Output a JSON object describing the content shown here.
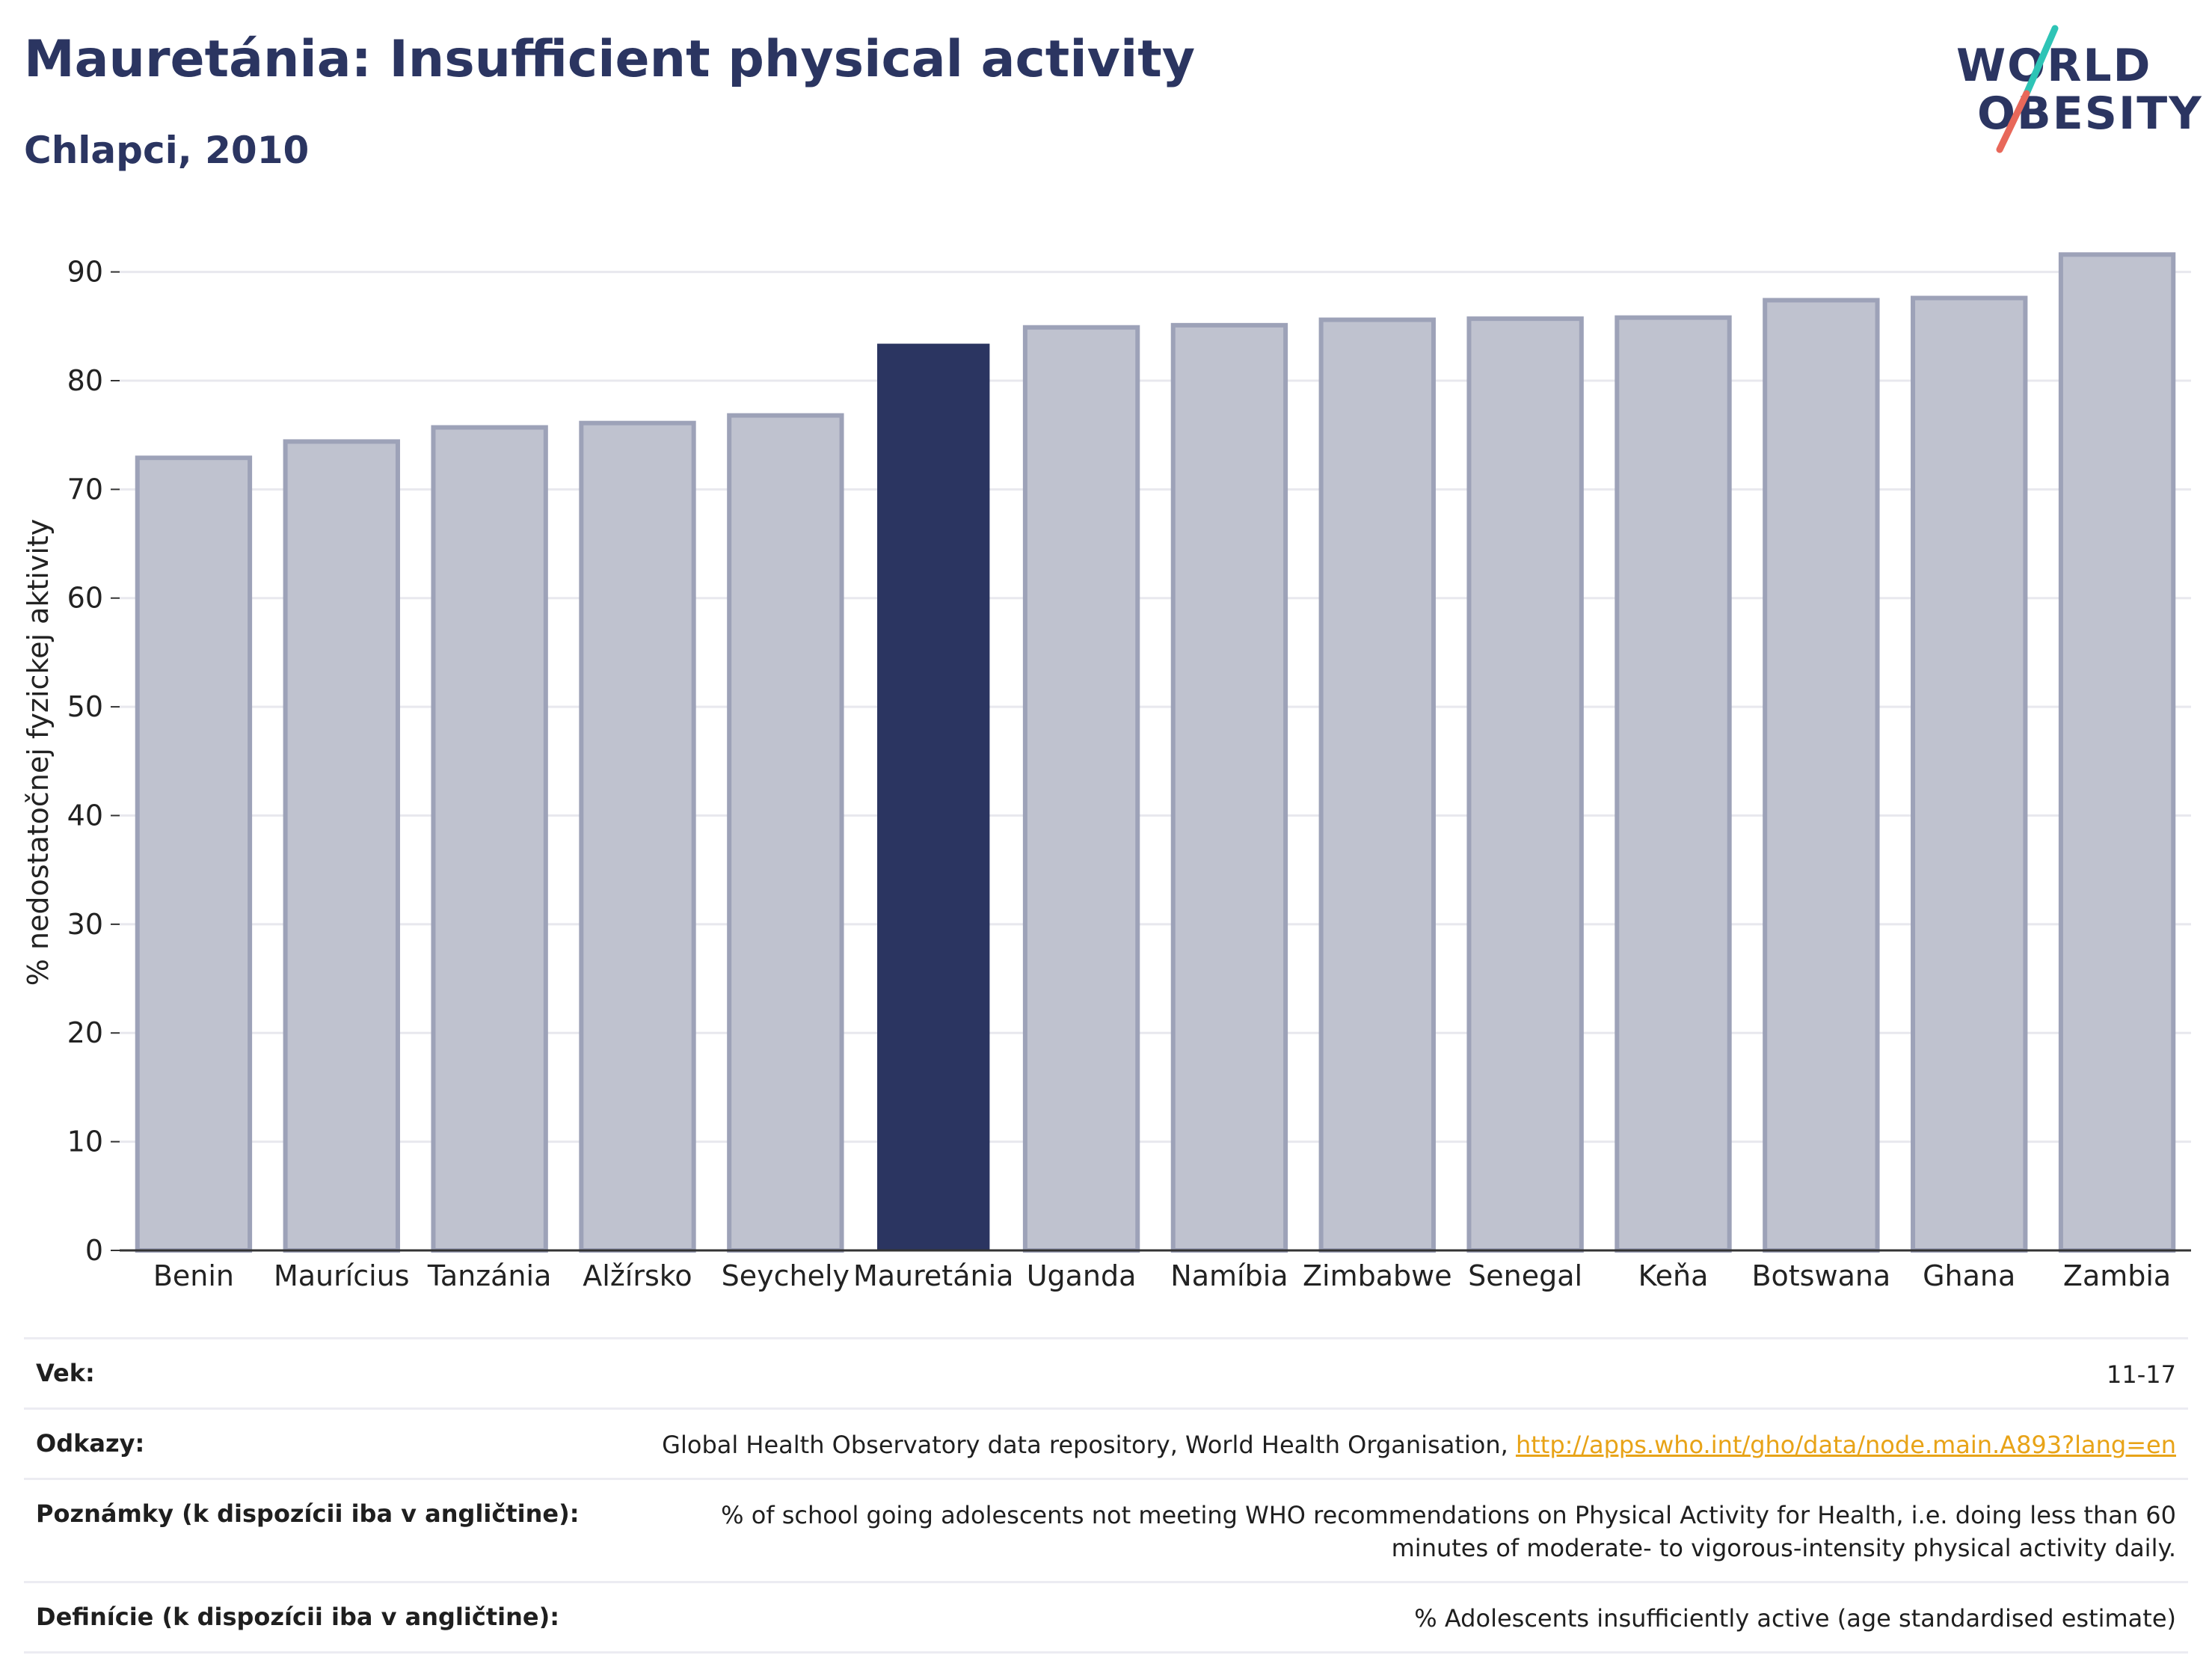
{
  "header": {
    "title": "Mauretánia: Insufficient physical activity",
    "subtitle": "Chlapci, 2010"
  },
  "logo": {
    "line1": "WORLD",
    "line2": "OBESITY",
    "colors": {
      "text": "#2b3561",
      "slash_teal": "#2ec4b6",
      "slash_coral": "#e8685a"
    }
  },
  "chart_data": {
    "type": "bar",
    "title": "Mauretánia: Insufficient physical activity",
    "subtitle": "Chlapci, 2010",
    "xlabel": "",
    "ylabel": "% nedostatočnej fyzickej aktivity",
    "ylim": [
      0,
      93
    ],
    "yticks": [
      0,
      10,
      20,
      30,
      40,
      50,
      60,
      70,
      80,
      90
    ],
    "grid": true,
    "categories": [
      "Benin",
      "Maurícius",
      "Tanzánia",
      "Alžírsko",
      "Seychely",
      "Mauretánia",
      "Uganda",
      "Namíbia",
      "Zimbabwe",
      "Senegal",
      "Keňa",
      "Botswana",
      "Ghana",
      "Zambia"
    ],
    "values": [
      72.9,
      74.4,
      75.7,
      76.1,
      76.8,
      83.4,
      84.9,
      85.1,
      85.6,
      85.7,
      85.8,
      87.4,
      87.6,
      91.6
    ],
    "highlight": "Mauretánia",
    "colors": {
      "bar": "#bfc2cf",
      "bar_border": "#9da2b8",
      "highlight": "#2b3561",
      "grid": "#e8e8ee",
      "axis": "#333333"
    }
  },
  "info": [
    {
      "label": "Vek:",
      "value": "11-17"
    },
    {
      "label": "Odkazy:",
      "value": "Global Health Observatory data repository, World Health Organisation, ",
      "link": "http://apps.who.int/gho/data/node.main.A893?lang=en"
    },
    {
      "label": "Poznámky (k dispozícii iba v angličtine):",
      "value": "% of school going adolescents not meeting WHO recommendations on Physical Activity for Health, i.e. doing less than 60 minutes of moderate- to vigorous-intensity physical activity daily."
    },
    {
      "label": "Definície (k dispozícii iba v angličtine):",
      "value": "% Adolescents insufficiently active (age standardised estimate)"
    }
  ]
}
